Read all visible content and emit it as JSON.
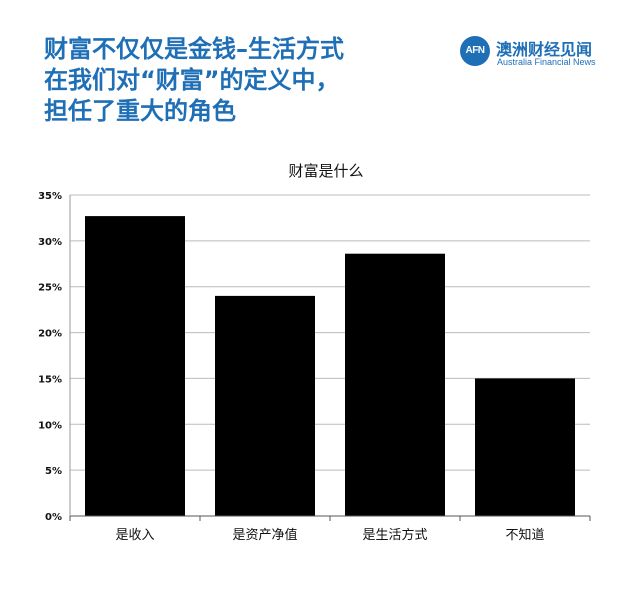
{
  "headline": {
    "lines": [
      "财富不仅仅是金钱–生活方式",
      "在我们对“财富”的定义中，",
      "担任了重大的角色"
    ]
  },
  "brand": {
    "logo_text": "AFN",
    "name_cn": "澳洲财经见闻",
    "name_en": "Australia Financial News"
  },
  "colors": {
    "headline": "#1f6fb6",
    "bars": "#000000",
    "grid": "#bbbbbb"
  },
  "chart_data": {
    "type": "bar",
    "title": "财富是什么",
    "categories": [
      "是收入",
      "是资产净值",
      "是生活方式",
      "不知道"
    ],
    "values": [
      32.7,
      24.0,
      28.6,
      15.0
    ],
    "ylim": [
      0,
      35
    ],
    "yticks": [
      0,
      5,
      10,
      15,
      20,
      25,
      30,
      35
    ],
    "ytick_labels": [
      "0%",
      "5%",
      "10%",
      "15%",
      "20%",
      "25%",
      "30%",
      "35%"
    ],
    "grid": true,
    "legend": "none"
  }
}
